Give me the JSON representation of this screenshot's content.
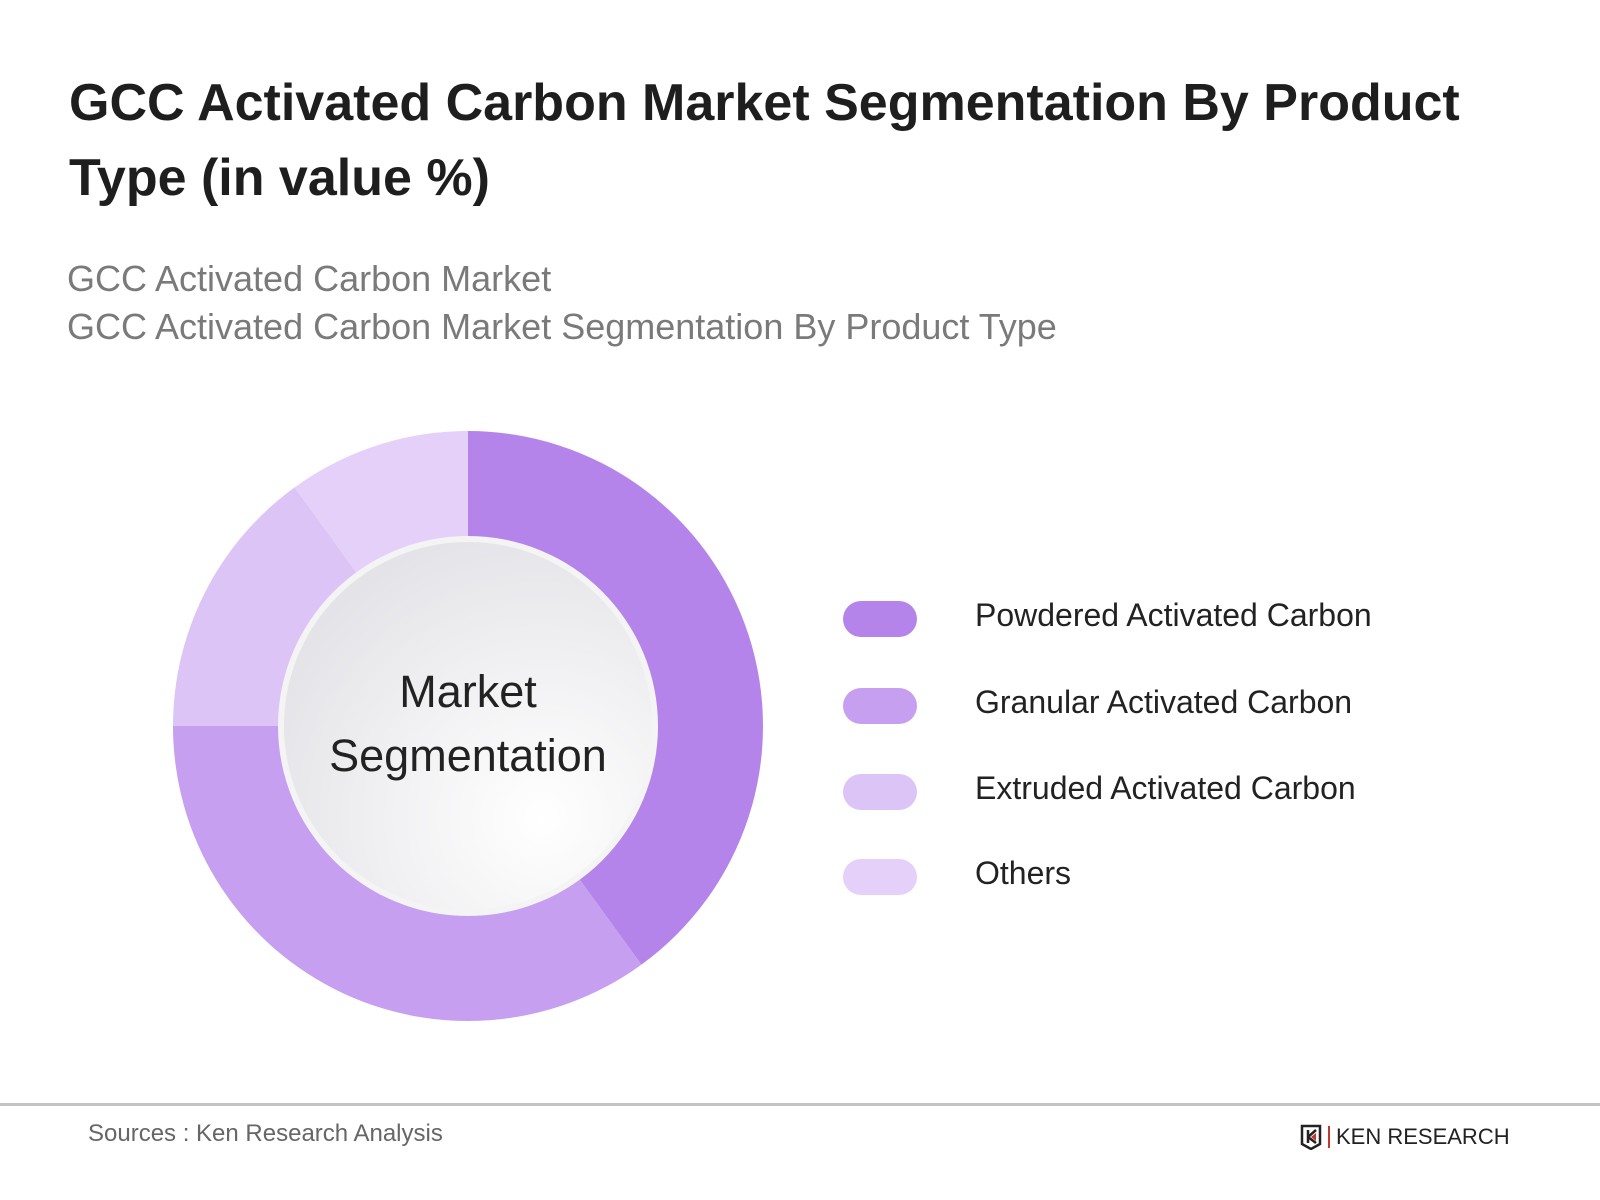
{
  "title": "GCC Activated Carbon Market Segmentation By Product Type (in value %)",
  "subtitle_1": "GCC Activated Carbon Market",
  "subtitle_2": "GCC Activated Carbon Market Segmentation By Product Type",
  "chart_data": {
    "type": "pie",
    "variant": "donut",
    "center_label": "Market Segmentation",
    "legend_position": "right",
    "categories": [
      "Powdered Activated Carbon",
      "Granular Activated Carbon",
      "Extruded Activated Carbon",
      "Others"
    ],
    "values": [
      40,
      35,
      15,
      10
    ],
    "colors": [
      "#b584ea",
      "#c69ff0",
      "#dcc4f6",
      "#e4d0f8"
    ]
  },
  "footer": {
    "source": "Sources : Ken Research Analysis",
    "logo_text": "KEN RESEARCH"
  }
}
